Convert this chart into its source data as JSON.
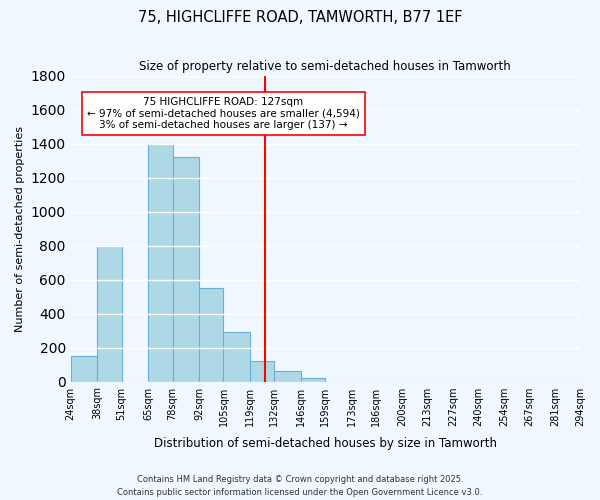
{
  "title": "75, HIGHCLIFFE ROAD, TAMWORTH, B77 1EF",
  "subtitle": "Size of property relative to semi-detached houses in Tamworth",
  "xlabel": "Distribution of semi-detached houses by size in Tamworth",
  "ylabel": "Number of semi-detached properties",
  "bin_labels": [
    "24sqm",
    "38sqm",
    "51sqm",
    "65sqm",
    "78sqm",
    "92sqm",
    "105sqm",
    "119sqm",
    "132sqm",
    "146sqm",
    "159sqm",
    "173sqm",
    "186sqm",
    "200sqm",
    "213sqm",
    "227sqm",
    "240sqm",
    "254sqm",
    "267sqm",
    "281sqm",
    "294sqm"
  ],
  "bin_edges": [
    24,
    38,
    51,
    65,
    78,
    92,
    105,
    119,
    132,
    146,
    159,
    173,
    186,
    200,
    213,
    227,
    240,
    254,
    267,
    281,
    294
  ],
  "bar_heights": [
    150,
    800,
    0,
    1400,
    1320,
    550,
    290,
    120,
    60,
    20,
    0,
    0,
    0,
    0,
    0,
    0,
    0,
    0,
    0,
    0
  ],
  "bar_color": "#add8e6",
  "bar_edgecolor": "#6baed6",
  "vline_x": 127,
  "vline_color": "#ff0000",
  "annotation_title": "75 HIGHCLIFFE ROAD: 127sqm",
  "annotation_line1": "← 97% of semi-detached houses are smaller (4,594)",
  "annotation_line2": "3% of semi-detached houses are larger (137) →",
  "annotation_box_color": "#ffffff",
  "annotation_box_edgecolor": "#ff0000",
  "ylim": [
    0,
    1800
  ],
  "footer1": "Contains HM Land Registry data © Crown copyright and database right 2025.",
  "footer2": "Contains public sector information licensed under the Open Government Licence v3.0.",
  "background_color": "#f0f8ff",
  "grid_color": "#ffffff"
}
